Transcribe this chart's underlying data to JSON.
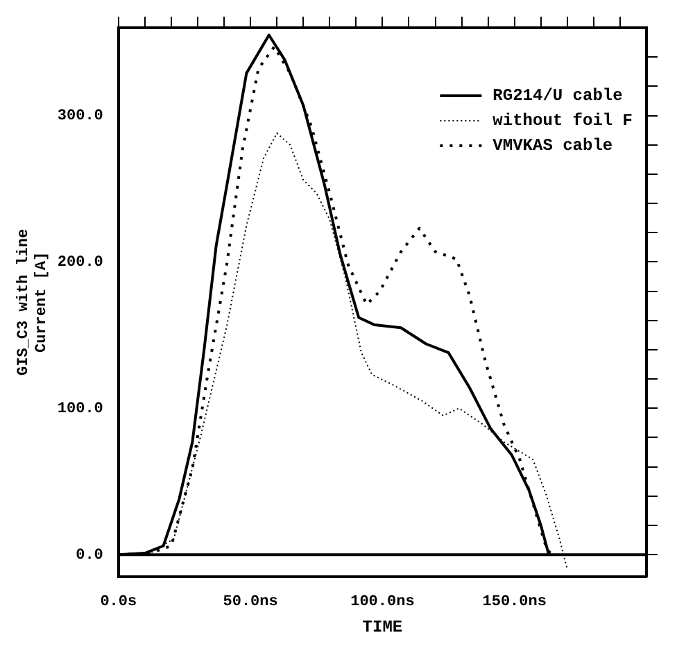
{
  "chart_data": {
    "type": "line",
    "xlabel": "TIME",
    "ylabel": "GIS_C3 with line\nCurrent [A]",
    "legend": "top right",
    "grid": false,
    "marker": "none",
    "xlim": [
      0,
      200
    ],
    "ylim": [
      -15,
      360
    ],
    "xticks": [
      {
        "value": 0,
        "label": "0.0s"
      },
      {
        "value": 10,
        "label": null
      },
      {
        "value": 20,
        "label": null
      },
      {
        "value": 30,
        "label": null
      },
      {
        "value": 40,
        "label": null
      },
      {
        "value": 50,
        "label": "50.0ns"
      },
      {
        "value": 60,
        "label": null
      },
      {
        "value": 70,
        "label": null
      },
      {
        "value": 80,
        "label": null
      },
      {
        "value": 90,
        "label": null
      },
      {
        "value": 100,
        "label": "100.0ns"
      },
      {
        "value": 110,
        "label": null
      },
      {
        "value": 120,
        "label": null
      },
      {
        "value": 130,
        "label": null
      },
      {
        "value": 140,
        "label": null
      },
      {
        "value": 150,
        "label": "150.0ns"
      },
      {
        "value": 160,
        "label": null
      },
      {
        "value": 170,
        "label": null
      },
      {
        "value": 180,
        "label": null
      },
      {
        "value": 190,
        "label": null
      }
    ],
    "yticks": [
      {
        "value": 0,
        "label": "0.0"
      },
      {
        "value": 20,
        "label": null
      },
      {
        "value": 40,
        "label": null
      },
      {
        "value": 60,
        "label": null
      },
      {
        "value": 80,
        "label": null
      },
      {
        "value": 100,
        "label": "100.0"
      },
      {
        "value": 120,
        "label": null
      },
      {
        "value": 140,
        "label": null
      },
      {
        "value": 160,
        "label": null
      },
      {
        "value": 180,
        "label": null
      },
      {
        "value": 200,
        "label": "200.0"
      },
      {
        "value": 220,
        "label": null
      },
      {
        "value": 240,
        "label": null
      },
      {
        "value": 260,
        "label": null
      },
      {
        "value": 280,
        "label": null
      },
      {
        "value": 300,
        "label": "300.0"
      },
      {
        "value": 320,
        "label": null
      },
      {
        "value": 340,
        "label": null
      }
    ],
    "ref_lines": [
      {
        "axis": "y",
        "value": 0,
        "color": "#000000",
        "line_style": "solid"
      }
    ],
    "series": [
      {
        "name": "RG214/U cable",
        "color": "#000000",
        "line_style": "solid",
        "x": [
          0,
          10,
          17,
          23,
          28,
          32.5,
          37,
          42,
          48.5,
          57,
          63,
          70,
          78,
          84,
          91,
          97,
          107,
          116.5,
          125,
          133,
          141,
          149,
          155.5,
          160,
          163
        ],
        "values": [
          0,
          1,
          6,
          38,
          77,
          141,
          211,
          262,
          329,
          355,
          338,
          307,
          253,
          205,
          162,
          157,
          155,
          144,
          138,
          114,
          86,
          68,
          44,
          20,
          0
        ]
      },
      {
        "name": "without foil F",
        "color": "#000000",
        "line_style": "dotted",
        "x": [
          0,
          12,
          21,
          31,
          41,
          48.5,
          55,
          60,
          65,
          70,
          75,
          80,
          86,
          92,
          96,
          104,
          115,
          123,
          129,
          138,
          146,
          157,
          162,
          167,
          170
        ],
        "values": [
          0,
          1,
          11,
          80,
          156,
          225,
          271,
          288,
          280,
          256,
          247,
          229,
          189,
          138,
          123,
          116,
          105,
          95,
          100,
          89,
          77,
          65,
          41,
          11,
          -10
        ]
      },
      {
        "name": "VMVKAS cable",
        "color": "#000000",
        "line_style": "dashed",
        "x": [
          0,
          12,
          20,
          28,
          34,
          41,
          47,
          53,
          59,
          65,
          73,
          80,
          87,
          94,
          99,
          107,
          114,
          120,
          128,
          133,
          139,
          146,
          152,
          157,
          162,
          164
        ],
        "values": [
          0,
          1,
          6,
          59,
          125,
          198,
          277,
          332,
          347,
          329,
          293,
          247,
          198,
          171,
          180,
          207,
          223,
          207,
          202,
          177,
          132,
          89,
          65,
          35,
          5,
          0
        ]
      }
    ]
  }
}
